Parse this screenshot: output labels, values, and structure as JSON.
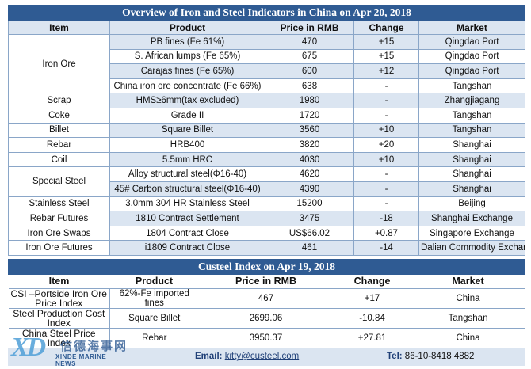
{
  "indicators": {
    "title": "Overview of Iron and Steel Indicators in China on Apr 20, 2018",
    "headers": [
      "Item",
      "Product",
      "Price in RMB",
      "Change",
      "Market"
    ],
    "groups": [
      {
        "item": "Iron Ore",
        "rows": [
          {
            "product": "PB fines (Fe 61%)",
            "price": "470",
            "change": "+15",
            "market": "Qingdao Port"
          },
          {
            "product": "S. African lumps (Fe 65%)",
            "price": "675",
            "change": "+15",
            "market": "Qingdao Port"
          },
          {
            "product": "Carajas fines (Fe 65%)",
            "price": "600",
            "change": "+12",
            "market": "Qingdao Port"
          },
          {
            "product": "China iron ore concentrate (Fe 66%)",
            "price": "638",
            "change": "-",
            "market": "Tangshan"
          }
        ]
      },
      {
        "item": "Scrap",
        "rows": [
          {
            "product": "HMS≥6mm(tax excluded)",
            "price": "1980",
            "change": "-",
            "market": "Zhangjiagang"
          }
        ]
      },
      {
        "item": "Coke",
        "rows": [
          {
            "product": "Grade II",
            "price": "1720",
            "change": "-",
            "market": "Tangshan"
          }
        ]
      },
      {
        "item": "Billet",
        "rows": [
          {
            "product": "Square Billet",
            "price": "3560",
            "change": "+10",
            "market": "Tangshan"
          }
        ]
      },
      {
        "item": "Rebar",
        "rows": [
          {
            "product": "HRB400",
            "price": "3820",
            "change": "+20",
            "market": "Shanghai"
          }
        ]
      },
      {
        "item": "Coil",
        "rows": [
          {
            "product": "5.5mm HRC",
            "price": "4030",
            "change": "+10",
            "market": "Shanghai"
          }
        ]
      },
      {
        "item": "Special Steel",
        "rows": [
          {
            "product": "Alloy structural steel(Φ16-40)",
            "price": "4620",
            "change": "-",
            "market": "Shanghai"
          },
          {
            "product": "45# Carbon structural steel(Φ16-40)",
            "price": "4390",
            "change": "-",
            "market": "Shanghai"
          }
        ]
      },
      {
        "item": "Stainless Steel",
        "rows": [
          {
            "product": "3.0mm 304 HR Stainless Steel",
            "price": "15200",
            "change": "-",
            "market": "Beijing"
          }
        ]
      },
      {
        "item": "Rebar Futures",
        "rows": [
          {
            "product": "1810 Contract Settlement",
            "price": "3475",
            "change": "-18",
            "market": "Shanghai Exchange"
          }
        ]
      },
      {
        "item": "Iron Ore Swaps",
        "rows": [
          {
            "product": "1804 Contract Close",
            "price": "US$66.02",
            "change": "+0.87",
            "market": "Singapore Exchange"
          }
        ]
      },
      {
        "item": "Iron Ore Futures",
        "rows": [
          {
            "product": "i1809 Contract Close",
            "price": "461",
            "change": "-14",
            "market": "Dalian Commodity Exchange"
          }
        ]
      }
    ]
  },
  "custeel": {
    "title": "Custeel Index on Apr 19, 2018",
    "headers": [
      "Item",
      "Product",
      "Price in RMB",
      "Change",
      "Market"
    ],
    "rows": [
      {
        "item": "CSI –Portside Iron Ore Price Index",
        "product": "62%-Fe imported fines",
        "price": "467",
        "change": "+17",
        "market": "China"
      },
      {
        "item": "Steel Production Cost Index",
        "product": "Square Billet",
        "price": "2699.06",
        "change": "-10.84",
        "market": "Tangshan"
      },
      {
        "item": "China Steel Price Index",
        "product": "Rebar",
        "price": "3950.37",
        "change": "+27.81",
        "market": "China"
      }
    ]
  },
  "footer": {
    "email_label": "Email:",
    "email": "kitty@custeel.com",
    "tel_label": "Tel:",
    "tel": "86-10-8418 4882"
  },
  "logo": {
    "mark": "XD",
    "chinese": "信德海事网",
    "english": "XINDE MARINE NEWS"
  }
}
